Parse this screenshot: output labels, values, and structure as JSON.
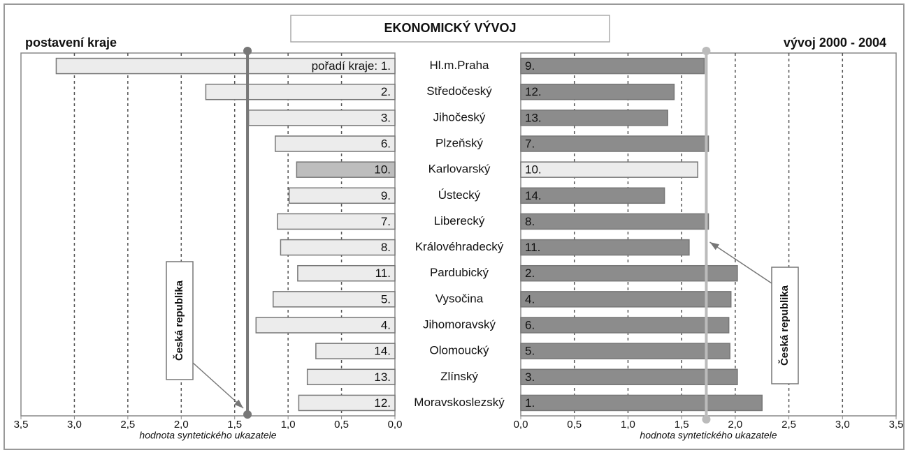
{
  "chart_data": [
    {
      "type": "bar",
      "orientation": "horizontal",
      "title": "EKONOMICKÝ VÝVOJ",
      "subtitle": "postavení kraje",
      "categories": [
        "Hl.m.Praha",
        "Středočeský",
        "Jihočeský",
        "Plzeňský",
        "Karlovarský",
        "Ústecký",
        "Liberecký",
        "Královéhradecký",
        "Pardubický",
        "Vysočina",
        "Jihomoravský",
        "Olomoucký",
        "Zlínský",
        "Moravskoslezský"
      ],
      "values": [
        3.17,
        1.77,
        1.37,
        1.12,
        0.92,
        0.99,
        1.1,
        1.07,
        0.91,
        1.14,
        1.3,
        0.74,
        0.82,
        0.9
      ],
      "rank_labels": [
        "pořadí kraje: 1.",
        "2.",
        "3.",
        "6.",
        "10.",
        "9.",
        "7.",
        "8.",
        "11.",
        "5.",
        "4.",
        "14.",
        "13.",
        "12."
      ],
      "colors": [
        "#ececec",
        "#ececec",
        "#ececec",
        "#ececec",
        "#bdbdbd",
        "#ececec",
        "#ececec",
        "#ececec",
        "#ececec",
        "#ececec",
        "#ececec",
        "#ececec",
        "#ececec",
        "#ececec"
      ],
      "xlim": [
        3.5,
        0
      ],
      "xticks": [
        {
          "value": 3.5,
          "label": "3,5"
        },
        {
          "value": 3.0,
          "label": "3,0"
        },
        {
          "value": 2.5,
          "label": "2,5"
        },
        {
          "value": 2.0,
          "label": "2,0"
        },
        {
          "value": 1.5,
          "label": "1,5"
        },
        {
          "value": 1.0,
          "label": "1,0"
        },
        {
          "value": 0.5,
          "label": "0,5"
        },
        {
          "value": 0,
          "label": "0,0"
        }
      ],
      "xlabel": "hodnota syntetického ukazatele",
      "reference": {
        "label": "Česká republika",
        "value": 1.38,
        "color": "#777777"
      },
      "grid": true
    },
    {
      "type": "bar",
      "orientation": "horizontal",
      "subtitle": "vývoj 2000 - 2004",
      "values": [
        1.71,
        1.43,
        1.37,
        1.75,
        1.65,
        1.34,
        1.75,
        1.57,
        2.02,
        1.96,
        1.94,
        1.95,
        2.02,
        2.25
      ],
      "rank_labels": [
        "9.",
        "12.",
        "13.",
        "7.",
        "10.",
        "14.",
        "8.",
        "11.",
        "2.",
        "4.",
        "6.",
        "5.",
        "3.",
        "1."
      ],
      "colors": [
        "#8c8c8c",
        "#8c8c8c",
        "#8c8c8c",
        "#8c8c8c",
        "#ececec",
        "#8c8c8c",
        "#8c8c8c",
        "#8c8c8c",
        "#8c8c8c",
        "#8c8c8c",
        "#8c8c8c",
        "#8c8c8c",
        "#8c8c8c",
        "#8c8c8c"
      ],
      "xlim": [
        0,
        3.5
      ],
      "xticks": [
        {
          "value": 0,
          "label": "0,0"
        },
        {
          "value": 0.5,
          "label": "0,5"
        },
        {
          "value": 1.0,
          "label": "1,0"
        },
        {
          "value": 1.5,
          "label": "1,5"
        },
        {
          "value": 2.0,
          "label": "2,0"
        },
        {
          "value": 2.5,
          "label": "2,5"
        },
        {
          "value": 3.0,
          "label": "3,0"
        },
        {
          "value": 3.5,
          "label": "3,5"
        }
      ],
      "xlabel": "hodnota syntetického ukazatele",
      "reference": {
        "label": "Česká republika",
        "value": 1.73,
        "color": "#bbbbbb"
      },
      "grid": true
    }
  ]
}
